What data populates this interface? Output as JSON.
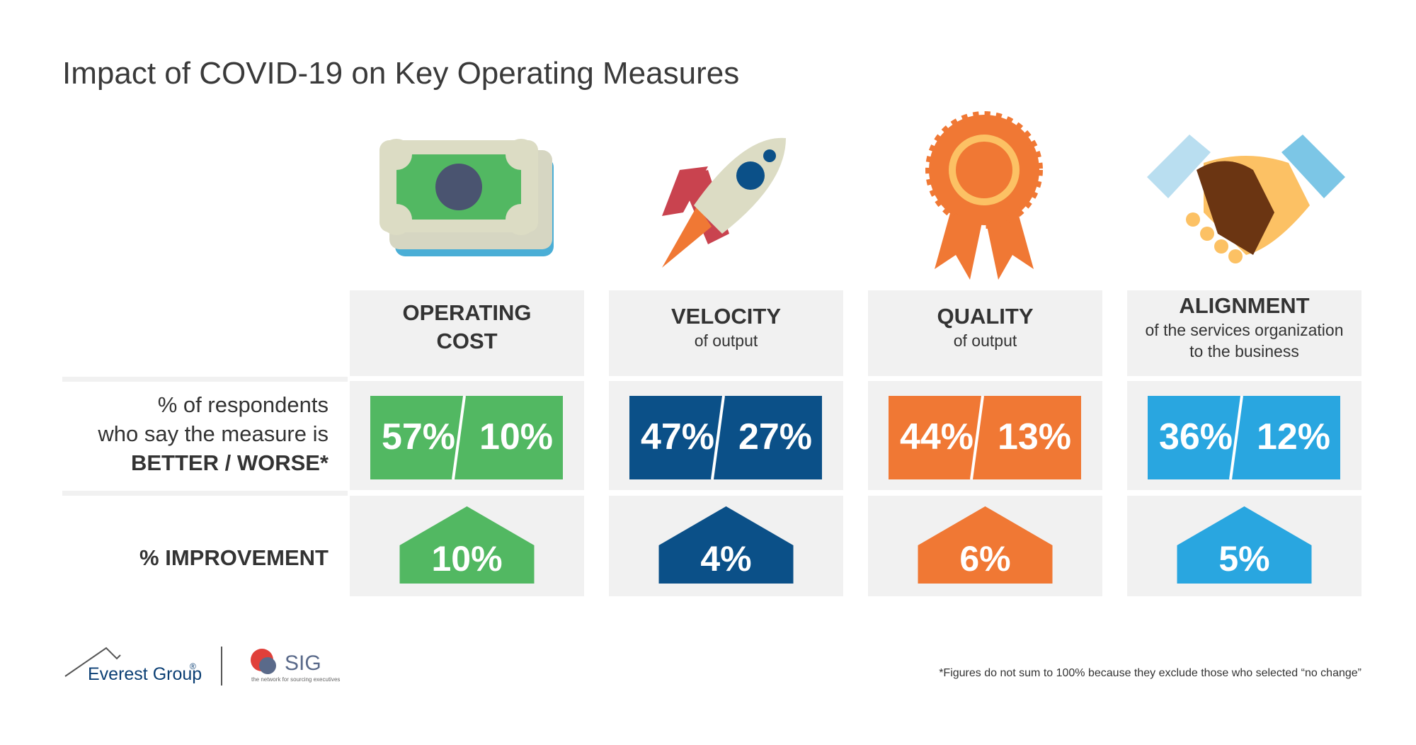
{
  "title": "Impact of COVID-19 on Key Operating Measures",
  "row_labels": {
    "better_worse": [
      "% of respondents",
      "who say the measure is",
      "BETTER / WORSE*"
    ],
    "improvement": "% IMPROVEMENT"
  },
  "measures": [
    {
      "name_lines": [
        "OPERATING",
        "COST"
      ],
      "subtitle_lines": [],
      "better": "57%",
      "worse": "10%",
      "improvement": "10%",
      "color": "#52b862"
    },
    {
      "name_lines": [
        "VELOCITY"
      ],
      "subtitle_lines": [
        "of output"
      ],
      "better": "47%",
      "worse": "27%",
      "improvement": "4%",
      "color": "#0b5088"
    },
    {
      "name_lines": [
        "QUALITY"
      ],
      "subtitle_lines": [
        "of output"
      ],
      "better": "44%",
      "worse": "13%",
      "improvement": "6%",
      "color": "#f07834"
    },
    {
      "name_lines": [
        "ALIGNMENT"
      ],
      "subtitle_lines": [
        "of the services organization",
        "to the business"
      ],
      "better": "36%",
      "worse": "12%",
      "improvement": "5%",
      "color": "#29a6e0"
    }
  ],
  "footnote": "*Figures do not sum to 100% because they exclude those who selected “no change”",
  "logos": {
    "everest": "Everest Group",
    "everest_mark": "®",
    "sig": "SIG",
    "sig_tagline": "the network for sourcing executives"
  }
}
